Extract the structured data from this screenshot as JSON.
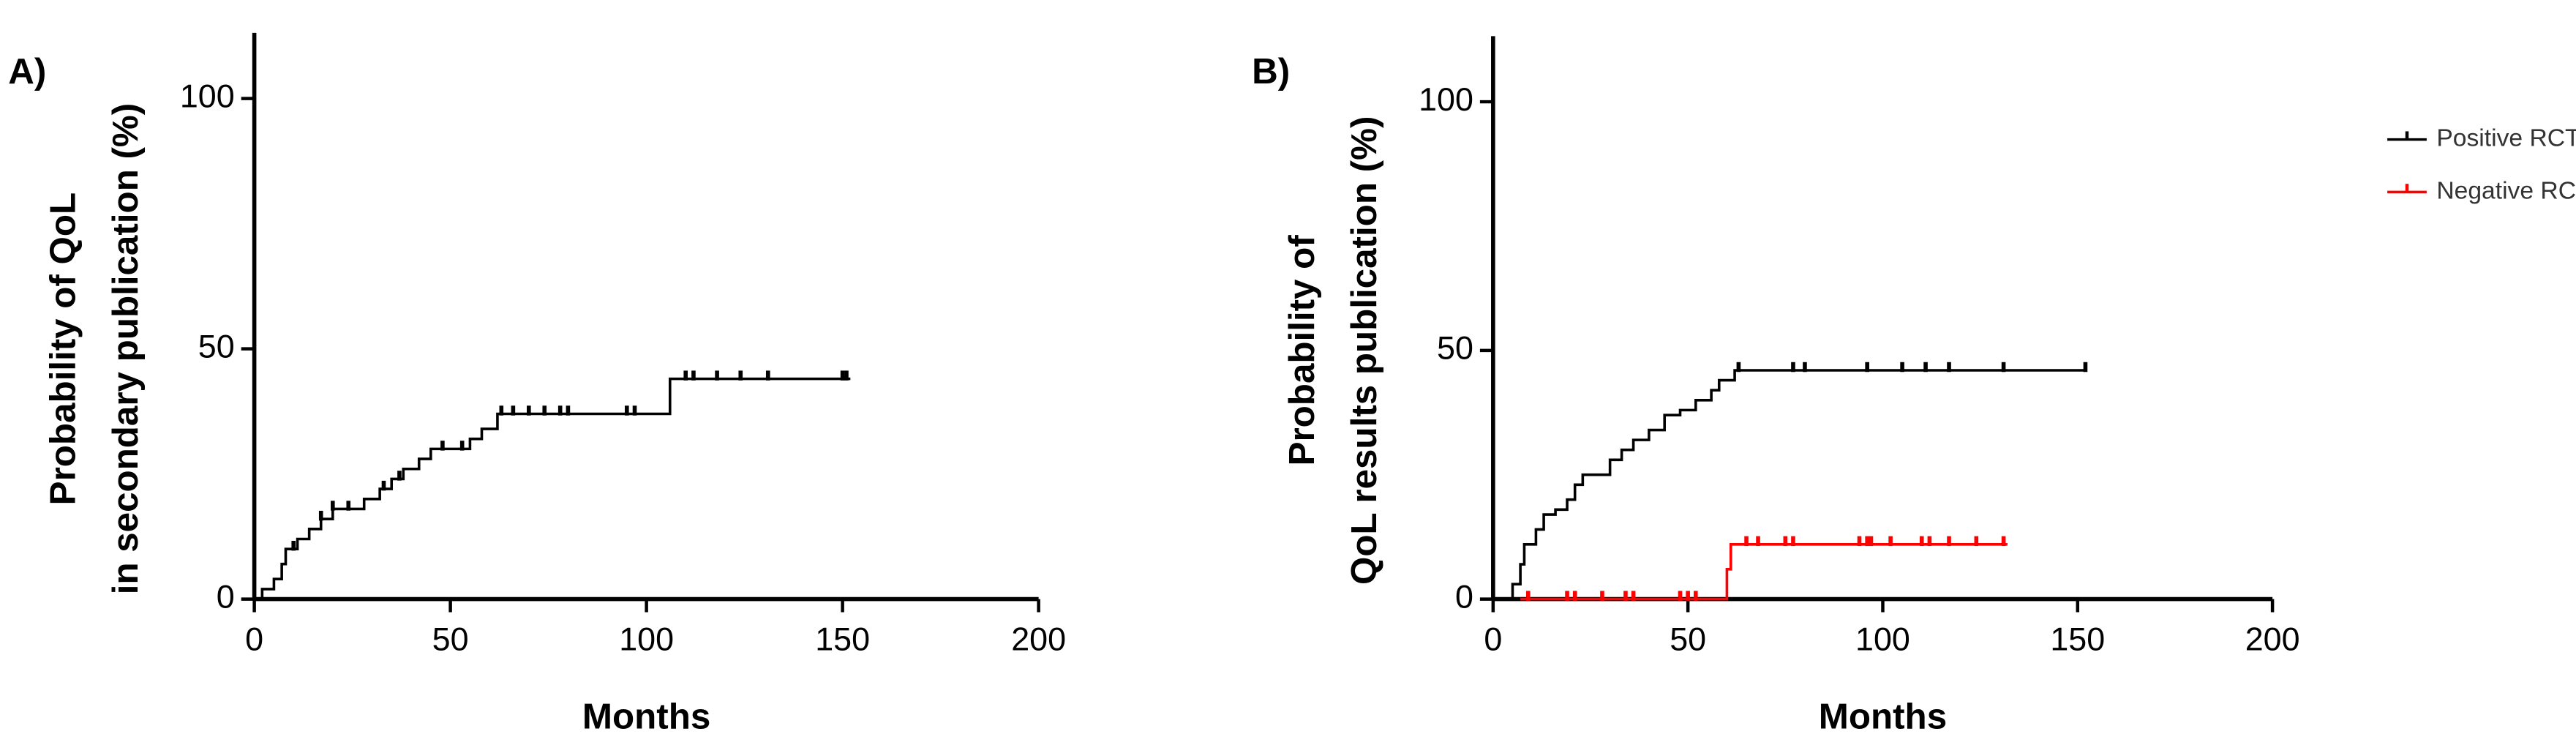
{
  "chart_data": [
    {
      "type": "step",
      "panel_label": "A)",
      "ylabel": [
        "Probability of QoL",
        "in secondary publication (%)"
      ],
      "xlabel": "Months",
      "xlim": [
        0,
        200
      ],
      "ylim": [
        0,
        100
      ],
      "xticks": [
        0,
        50,
        100,
        150,
        200
      ],
      "yticks": [
        0,
        50,
        100
      ],
      "series": [
        {
          "color": "#000000",
          "x": [
            0,
            2,
            5,
            7,
            8,
            11,
            14,
            17,
            20,
            22,
            28,
            32,
            35,
            38,
            42,
            45,
            50,
            55,
            58,
            62,
            106,
            152
          ],
          "values": [
            0,
            2,
            4,
            7,
            10,
            12,
            14,
            16,
            18,
            18,
            20,
            22,
            24,
            26,
            28,
            30,
            30,
            32,
            34,
            37,
            44,
            44
          ],
          "censor_x": [
            10,
            17,
            20,
            24,
            33,
            37,
            48,
            53,
            63,
            66,
            70,
            74,
            78,
            80,
            95,
            97,
            110,
            112,
            118,
            124,
            131,
            150,
            151
          ],
          "censor_values": [
            10,
            16,
            18,
            18,
            22,
            24,
            30,
            30,
            37,
            37,
            37,
            37,
            37,
            37,
            37,
            37,
            44,
            44,
            44,
            44,
            44,
            44,
            44
          ]
        }
      ]
    },
    {
      "type": "step",
      "panel_label": "B)",
      "ylabel": [
        "Probability of",
        "QoL results publication (%)"
      ],
      "xlabel": "Months",
      "xlim": [
        0,
        200
      ],
      "ylim": [
        0,
        100
      ],
      "xticks": [
        0,
        50,
        100,
        150,
        200
      ],
      "yticks": [
        0,
        50,
        100
      ],
      "legend": "top-right",
      "series": [
        {
          "name": "Positive RCTs",
          "color": "#000000",
          "x": [
            0,
            5,
            7,
            8,
            11,
            13,
            16,
            19,
            21,
            23,
            27,
            30,
            33,
            36,
            40,
            44,
            48,
            52,
            56,
            58,
            62,
            152
          ],
          "values": [
            0,
            3,
            7,
            11,
            14,
            17,
            18,
            20,
            23,
            25,
            25,
            28,
            30,
            32,
            34,
            37,
            38,
            40,
            42,
            44,
            46,
            46
          ],
          "censor_x": [
            63,
            77,
            80,
            96,
            105,
            111,
            117,
            131,
            152
          ],
          "censor_values": [
            46,
            46,
            46,
            46,
            46,
            46,
            46,
            46,
            46
          ]
        },
        {
          "name": "Negative RCTs",
          "color": "#ff0000",
          "x": [
            7,
            59,
            60,
            61,
            132
          ],
          "values": [
            0,
            0,
            6,
            11,
            11
          ],
          "censor_x": [
            9,
            19,
            21,
            28,
            34,
            36,
            48,
            50,
            52,
            65,
            68,
            75,
            77,
            94,
            96,
            97,
            102,
            110,
            112,
            117,
            124,
            131
          ],
          "censor_values": [
            0,
            0,
            0,
            0,
            0,
            0,
            0,
            0,
            0,
            11,
            11,
            11,
            11,
            11,
            11,
            11,
            11,
            11,
            11,
            11,
            11,
            11
          ]
        }
      ]
    }
  ]
}
